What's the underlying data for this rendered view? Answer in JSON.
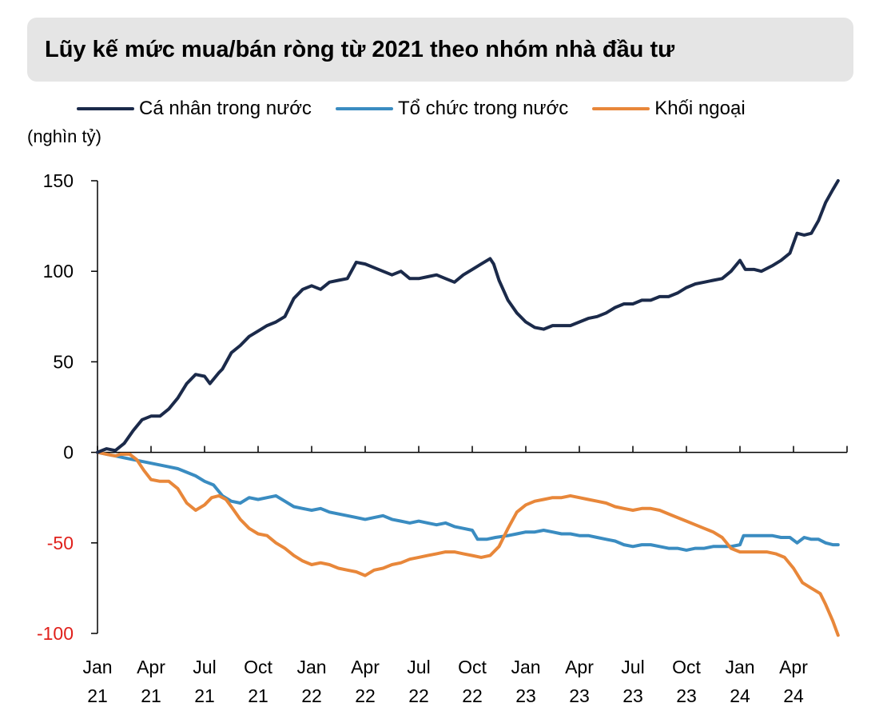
{
  "title": "Lũy kế mức mua/bán ròng từ 2021 theo nhóm nhà đầu tư",
  "unit": "(nghìn tỷ)",
  "colors": {
    "ca_nhan": "#1b2a4a",
    "to_chuc": "#3a8cc1",
    "khoi_ngoai": "#e8873a",
    "negative_label": "#e0201b",
    "title_bg": "#e5e5e5"
  },
  "chart_data": {
    "type": "line",
    "title": "Lũy kế mức mua/bán ròng từ 2021 theo nhóm nhà đầu tư",
    "ylabel": "(nghìn tỷ)",
    "ylim": [
      -100,
      150
    ],
    "yticks": [
      150,
      100,
      50,
      0,
      -50,
      -100
    ],
    "ytick_labels": [
      "150",
      "100",
      "50",
      "0",
      "-50",
      "-100"
    ],
    "xlim": [
      0,
      42
    ],
    "x_ticks": [
      {
        "m": 0,
        "l1": "Jan",
        "l2": "21"
      },
      {
        "m": 3,
        "l1": "Apr",
        "l2": "21"
      },
      {
        "m": 6,
        "l1": "Jul",
        "l2": "21"
      },
      {
        "m": 9,
        "l1": "Oct",
        "l2": "21"
      },
      {
        "m": 12,
        "l1": "Jan",
        "l2": "22"
      },
      {
        "m": 15,
        "l1": "Apr",
        "l2": "22"
      },
      {
        "m": 18,
        "l1": "Jul",
        "l2": "22"
      },
      {
        "m": 21,
        "l1": "Oct",
        "l2": "22"
      },
      {
        "m": 24,
        "l1": "Jan",
        "l2": "23"
      },
      {
        "m": 27,
        "l1": "Apr",
        "l2": "23"
      },
      {
        "m": 30,
        "l1": "Jul",
        "l2": "23"
      },
      {
        "m": 33,
        "l1": "Oct",
        "l2": "23"
      },
      {
        "m": 36,
        "l1": "Jan",
        "l2": "24"
      },
      {
        "m": 39,
        "l1": "Apr",
        "l2": "24"
      }
    ],
    "grid": false,
    "legend_position": "top",
    "series": [
      {
        "name": "Cá nhân trong nước",
        "color_key": "ca_nhan",
        "points": [
          [
            0,
            0
          ],
          [
            0.5,
            2
          ],
          [
            1,
            1
          ],
          [
            1.5,
            5
          ],
          [
            2,
            12
          ],
          [
            2.5,
            18
          ],
          [
            3,
            20
          ],
          [
            3.5,
            20
          ],
          [
            4,
            24
          ],
          [
            4.5,
            30
          ],
          [
            5,
            38
          ],
          [
            5.5,
            43
          ],
          [
            6,
            42
          ],
          [
            6.3,
            38
          ],
          [
            6.8,
            44
          ],
          [
            7,
            46
          ],
          [
            7.5,
            55
          ],
          [
            8,
            59
          ],
          [
            8.5,
            64
          ],
          [
            9,
            67
          ],
          [
            9.5,
            70
          ],
          [
            10,
            72
          ],
          [
            10.5,
            75
          ],
          [
            11,
            85
          ],
          [
            11.5,
            90
          ],
          [
            12,
            92
          ],
          [
            12.5,
            90
          ],
          [
            13,
            94
          ],
          [
            13.5,
            95
          ],
          [
            14,
            96
          ],
          [
            14.5,
            105
          ],
          [
            15,
            104
          ],
          [
            15.5,
            102
          ],
          [
            16,
            100
          ],
          [
            16.5,
            98
          ],
          [
            17,
            100
          ],
          [
            17.5,
            96
          ],
          [
            18,
            96
          ],
          [
            18.5,
            97
          ],
          [
            19,
            98
          ],
          [
            19.5,
            96
          ],
          [
            20,
            94
          ],
          [
            20.5,
            98
          ],
          [
            21,
            101
          ],
          [
            21.5,
            104
          ],
          [
            22,
            107
          ],
          [
            22.2,
            104
          ],
          [
            22.5,
            95
          ],
          [
            23,
            84
          ],
          [
            23.5,
            77
          ],
          [
            24,
            72
          ],
          [
            24.5,
            69
          ],
          [
            25,
            68
          ],
          [
            25.5,
            70
          ],
          [
            26,
            70
          ],
          [
            26.5,
            70
          ],
          [
            27,
            72
          ],
          [
            27.5,
            74
          ],
          [
            28,
            75
          ],
          [
            28.5,
            77
          ],
          [
            29,
            80
          ],
          [
            29.5,
            82
          ],
          [
            30,
            82
          ],
          [
            30.5,
            84
          ],
          [
            31,
            84
          ],
          [
            31.5,
            86
          ],
          [
            32,
            86
          ],
          [
            32.5,
            88
          ],
          [
            33,
            91
          ],
          [
            33.5,
            93
          ],
          [
            34,
            94
          ],
          [
            34.5,
            95
          ],
          [
            35,
            96
          ],
          [
            35.5,
            100
          ],
          [
            36,
            106
          ],
          [
            36.3,
            101
          ],
          [
            36.8,
            101
          ],
          [
            37.2,
            100
          ],
          [
            37.8,
            103
          ],
          [
            38.3,
            106
          ],
          [
            38.8,
            110
          ],
          [
            39.2,
            121
          ],
          [
            39.6,
            120
          ],
          [
            40,
            121
          ],
          [
            40.4,
            128
          ],
          [
            40.8,
            138
          ],
          [
            41.2,
            145
          ],
          [
            41.5,
            150
          ]
        ]
      },
      {
        "name": "Tổ chức trong nước",
        "color_key": "to_chuc",
        "points": [
          [
            0,
            0
          ],
          [
            0.5,
            -1
          ],
          [
            1,
            -2
          ],
          [
            1.5,
            -3
          ],
          [
            2,
            -4
          ],
          [
            2.5,
            -5
          ],
          [
            3,
            -6
          ],
          [
            3.5,
            -7
          ],
          [
            4,
            -8
          ],
          [
            4.5,
            -9
          ],
          [
            5,
            -11
          ],
          [
            5.5,
            -13
          ],
          [
            6,
            -16
          ],
          [
            6.5,
            -18
          ],
          [
            7,
            -24
          ],
          [
            7.5,
            -27
          ],
          [
            8,
            -28
          ],
          [
            8.5,
            -25
          ],
          [
            9,
            -26
          ],
          [
            9.5,
            -25
          ],
          [
            10,
            -24
          ],
          [
            10.5,
            -27
          ],
          [
            11,
            -30
          ],
          [
            11.5,
            -31
          ],
          [
            12,
            -32
          ],
          [
            12.5,
            -31
          ],
          [
            13,
            -33
          ],
          [
            13.5,
            -34
          ],
          [
            14,
            -35
          ],
          [
            14.5,
            -36
          ],
          [
            15,
            -37
          ],
          [
            15.5,
            -36
          ],
          [
            16,
            -35
          ],
          [
            16.5,
            -37
          ],
          [
            17,
            -38
          ],
          [
            17.5,
            -39
          ],
          [
            18,
            -38
          ],
          [
            18.5,
            -39
          ],
          [
            19,
            -40
          ],
          [
            19.5,
            -39
          ],
          [
            20,
            -41
          ],
          [
            20.5,
            -42
          ],
          [
            21,
            -43
          ],
          [
            21.3,
            -48
          ],
          [
            21.8,
            -48
          ],
          [
            22.3,
            -47
          ],
          [
            23,
            -46
          ],
          [
            23.5,
            -45
          ],
          [
            24,
            -44
          ],
          [
            24.5,
            -44
          ],
          [
            25,
            -43
          ],
          [
            25.5,
            -44
          ],
          [
            26,
            -45
          ],
          [
            26.5,
            -45
          ],
          [
            27,
            -46
          ],
          [
            27.5,
            -46
          ],
          [
            28,
            -47
          ],
          [
            28.5,
            -48
          ],
          [
            29,
            -49
          ],
          [
            29.5,
            -51
          ],
          [
            30,
            -52
          ],
          [
            30.5,
            -51
          ],
          [
            31,
            -51
          ],
          [
            31.5,
            -52
          ],
          [
            32,
            -53
          ],
          [
            32.5,
            -53
          ],
          [
            33,
            -54
          ],
          [
            33.5,
            -53
          ],
          [
            34,
            -53
          ],
          [
            34.5,
            -52
          ],
          [
            35,
            -52
          ],
          [
            35.5,
            -52
          ],
          [
            36,
            -51
          ],
          [
            36.2,
            -46
          ],
          [
            36.8,
            -46
          ],
          [
            37.3,
            -46
          ],
          [
            37.8,
            -46
          ],
          [
            38.3,
            -47
          ],
          [
            38.8,
            -47
          ],
          [
            39.2,
            -50
          ],
          [
            39.6,
            -47
          ],
          [
            40,
            -48
          ],
          [
            40.4,
            -48
          ],
          [
            40.8,
            -50
          ],
          [
            41.2,
            -51
          ],
          [
            41.5,
            -51
          ]
        ]
      },
      {
        "name": "Khối ngoại",
        "color_key": "khoi_ngoai",
        "points": [
          [
            0,
            0
          ],
          [
            0.5,
            -1
          ],
          [
            1,
            -2
          ],
          [
            1.3,
            -1
          ],
          [
            1.8,
            -1
          ],
          [
            2.2,
            -4
          ],
          [
            2.6,
            -10
          ],
          [
            3,
            -15
          ],
          [
            3.5,
            -16
          ],
          [
            4,
            -16
          ],
          [
            4.5,
            -20
          ],
          [
            5,
            -28
          ],
          [
            5.5,
            -32
          ],
          [
            6,
            -29
          ],
          [
            6.4,
            -25
          ],
          [
            6.8,
            -24
          ],
          [
            7.2,
            -26
          ],
          [
            7.5,
            -30
          ],
          [
            8,
            -37
          ],
          [
            8.5,
            -42
          ],
          [
            9,
            -45
          ],
          [
            9.5,
            -46
          ],
          [
            10,
            -50
          ],
          [
            10.5,
            -53
          ],
          [
            11,
            -57
          ],
          [
            11.5,
            -60
          ],
          [
            12,
            -62
          ],
          [
            12.5,
            -61
          ],
          [
            13,
            -62
          ],
          [
            13.5,
            -64
          ],
          [
            14,
            -65
          ],
          [
            14.5,
            -66
          ],
          [
            15,
            -68
          ],
          [
            15.5,
            -65
          ],
          [
            16,
            -64
          ],
          [
            16.5,
            -62
          ],
          [
            17,
            -61
          ],
          [
            17.5,
            -59
          ],
          [
            18,
            -58
          ],
          [
            18.5,
            -57
          ],
          [
            19,
            -56
          ],
          [
            19.5,
            -55
          ],
          [
            20,
            -55
          ],
          [
            20.5,
            -56
          ],
          [
            21,
            -57
          ],
          [
            21.5,
            -58
          ],
          [
            22,
            -57
          ],
          [
            22.5,
            -52
          ],
          [
            23,
            -42
          ],
          [
            23.5,
            -33
          ],
          [
            24,
            -29
          ],
          [
            24.5,
            -27
          ],
          [
            25,
            -26
          ],
          [
            25.5,
            -25
          ],
          [
            26,
            -25
          ],
          [
            26.5,
            -24
          ],
          [
            27,
            -25
          ],
          [
            27.5,
            -26
          ],
          [
            28,
            -27
          ],
          [
            28.5,
            -28
          ],
          [
            29,
            -30
          ],
          [
            29.5,
            -31
          ],
          [
            30,
            -32
          ],
          [
            30.5,
            -31
          ],
          [
            31,
            -31
          ],
          [
            31.5,
            -32
          ],
          [
            32,
            -34
          ],
          [
            32.5,
            -36
          ],
          [
            33,
            -38
          ],
          [
            33.5,
            -40
          ],
          [
            34,
            -42
          ],
          [
            34.5,
            -44
          ],
          [
            35,
            -47
          ],
          [
            35.5,
            -53
          ],
          [
            36,
            -55
          ],
          [
            36.5,
            -55
          ],
          [
            37,
            -55
          ],
          [
            37.5,
            -55
          ],
          [
            38,
            -56
          ],
          [
            38.5,
            -58
          ],
          [
            39,
            -64
          ],
          [
            39.5,
            -72
          ],
          [
            40,
            -75
          ],
          [
            40.5,
            -78
          ],
          [
            40.8,
            -84
          ],
          [
            41.2,
            -93
          ],
          [
            41.5,
            -101
          ]
        ]
      }
    ]
  }
}
